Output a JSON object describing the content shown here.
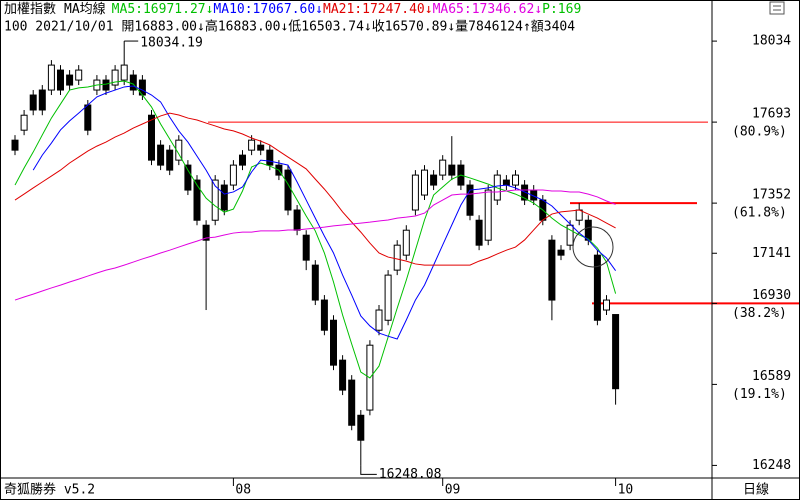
{
  "chart_data": {
    "type": "candlestick",
    "title": "加權指數",
    "subtitle": "MA均線",
    "info_line": "100 2021/10/01 開16883.00↓高16883.00↓低16503.74↓收16570.89↓量7846124↑額3404",
    "extra_label": {
      "text": "P:169",
      "color": "#00c000"
    },
    "footer_left": "奇狐勝券 v5.2",
    "footer_right": "日線",
    "max_label": "18034.19",
    "min_label": "16248.08",
    "ylim": [
      16195,
      18207
    ],
    "yticks": [
      18034,
      17693,
      17352,
      17141,
      16930,
      16589,
      16248
    ],
    "retracements": [
      {
        "value": 17693,
        "label": "(80.9%)"
      },
      {
        "value": 17352,
        "label": "(61.8%)"
      },
      {
        "value": 16930,
        "label": "(38.2%)"
      },
      {
        "value": 16589,
        "label": "(19.1%)"
      }
    ],
    "hlines": [
      17693,
      17352,
      16930
    ],
    "categories": [
      null,
      null,
      null,
      null,
      null,
      null,
      null,
      null,
      null,
      null,
      null,
      null,
      null,
      null,
      null,
      null,
      null,
      null,
      null,
      null,
      null,
      null,
      null,
      null,
      "08",
      null,
      null,
      null,
      null,
      null,
      null,
      null,
      null,
      null,
      null,
      null,
      null,
      null,
      null,
      null,
      null,
      null,
      null,
      null,
      null,
      null,
      null,
      "09",
      null,
      null,
      null,
      null,
      null,
      null,
      null,
      null,
      null,
      null,
      null,
      null,
      null,
      null,
      null,
      null,
      null,
      null,
      "10"
    ],
    "candles": [
      [
        17617,
        17638,
        17554,
        17575
      ],
      [
        17659,
        17744,
        17638,
        17722
      ],
      [
        17807,
        17828,
        17722,
        17744
      ],
      [
        17828,
        17849,
        17722,
        17744
      ],
      [
        17828,
        17954,
        17807,
        17933
      ],
      [
        17912,
        17933,
        17807,
        17828
      ],
      [
        17891,
        17912,
        17828,
        17849
      ],
      [
        17870,
        17933,
        17849,
        17912
      ],
      [
        17765,
        17786,
        17638,
        17659
      ],
      [
        17828,
        17891,
        17807,
        17870
      ],
      [
        17870,
        17891,
        17807,
        17828
      ],
      [
        17849,
        17933,
        17828,
        17912
      ],
      [
        17870,
        18034.19,
        17849,
        17933
      ],
      [
        17891,
        17912,
        17807,
        17828
      ],
      [
        17870,
        17891,
        17786,
        17807
      ],
      [
        17722,
        17744,
        17512,
        17533
      ],
      [
        17596,
        17617,
        17491,
        17512
      ],
      [
        17575,
        17596,
        17470,
        17491
      ],
      [
        17533,
        17638,
        17512,
        17617
      ],
      [
        17512,
        17533,
        17386,
        17407
      ],
      [
        17449,
        17470,
        17259,
        17280
      ],
      [
        17259,
        17280,
        16902,
        17196
      ],
      [
        17280,
        17470,
        17259,
        17449
      ],
      [
        17428,
        17449,
        17301,
        17323
      ],
      [
        17428,
        17533,
        17407,
        17512
      ],
      [
        17554,
        17575,
        17491,
        17512
      ],
      [
        17575,
        17638,
        17554,
        17617
      ],
      [
        17596,
        17617,
        17554,
        17575
      ],
      [
        17575,
        17596,
        17491,
        17512
      ],
      [
        17512,
        17533,
        17449,
        17470
      ],
      [
        17491,
        17512,
        17301,
        17323
      ],
      [
        17323,
        17344,
        17217,
        17238
      ],
      [
        17217,
        17238,
        17070,
        17112
      ],
      [
        17091,
        17112,
        16923,
        16944
      ],
      [
        16944,
        16965,
        16796,
        16817
      ],
      [
        16859,
        16880,
        16649,
        16670
      ],
      [
        16691,
        16712,
        16544,
        16565
      ],
      [
        16607,
        16628,
        16396,
        16417
      ],
      [
        16459,
        16481,
        16248.08,
        16354
      ],
      [
        16481,
        16775,
        16459,
        16754
      ],
      [
        16817,
        16923,
        16796,
        16902
      ],
      [
        16859,
        17070,
        16838,
        17049
      ],
      [
        17070,
        17196,
        17049,
        17175
      ],
      [
        17133,
        17259,
        17112,
        17238
      ],
      [
        17323,
        17491,
        17301,
        17470
      ],
      [
        17386,
        17512,
        17365,
        17491
      ],
      [
        17470,
        17491,
        17407,
        17428
      ],
      [
        17470,
        17554,
        17449,
        17533
      ],
      [
        17512,
        17634,
        17449,
        17470
      ],
      [
        17512,
        17533,
        17407,
        17428
      ],
      [
        17428,
        17449,
        17280,
        17301
      ],
      [
        17280,
        17301,
        17154,
        17175
      ],
      [
        17196,
        17428,
        17175,
        17407
      ],
      [
        17365,
        17491,
        17344,
        17470
      ],
      [
        17449,
        17470,
        17407,
        17428
      ],
      [
        17428,
        17491,
        17407,
        17470
      ],
      [
        17428,
        17449,
        17344,
        17365
      ],
      [
        17407,
        17428,
        17344,
        17365
      ],
      [
        17365,
        17386,
        17259,
        17280
      ],
      [
        17196,
        17217,
        16859,
        16944
      ],
      [
        17154,
        17175,
        17112,
        17133
      ],
      [
        17175,
        17280,
        17154,
        17259
      ],
      [
        17280,
        17352,
        17259,
        17323
      ],
      [
        17280,
        17301,
        17175,
        17196
      ],
      [
        17133,
        17154,
        16838,
        16859
      ],
      [
        16902,
        16965,
        16881,
        16944
      ],
      [
        16883.0,
        16883.0,
        16503.74,
        16570.89
      ]
    ],
    "series": [
      {
        "name": "MA5",
        "label": "MA5:16971.27↓",
        "color": "#00c000",
        "values": [
          17428,
          17500,
          17567,
          17639,
          17710,
          17769,
          17828,
          17837,
          17841,
          17849,
          17853,
          17862,
          17866,
          17853,
          17807,
          17757,
          17685,
          17622,
          17559,
          17491,
          17428,
          17373,
          17340,
          17314,
          17327,
          17403,
          17504,
          17521,
          17508,
          17491,
          17432,
          17365,
          17298,
          17235,
          17142,
          17020,
          16881,
          16759,
          16641,
          16616,
          16666,
          16788,
          16910,
          17028,
          17154,
          17281,
          17386,
          17420,
          17453,
          17470,
          17458,
          17445,
          17432,
          17416,
          17403,
          17390,
          17373,
          17352,
          17323,
          17289,
          17260,
          17239,
          17218,
          17201,
          17163,
          17104,
          16971.27
        ]
      },
      {
        "name": "MA10",
        "label": "MA10:17067.60↓",
        "color": "#0000ff",
        "values": [
          null,
          null,
          17491,
          17554,
          17605,
          17660,
          17698,
          17731,
          17765,
          17799,
          17815,
          17828,
          17841,
          17845,
          17828,
          17807,
          17778,
          17714,
          17656,
          17609,
          17550,
          17491,
          17424,
          17390,
          17399,
          17420,
          17483,
          17533,
          17529,
          17521,
          17512,
          17441,
          17365,
          17289,
          17213,
          17142,
          17049,
          16965,
          16877,
          16835,
          16805,
          16792,
          16780,
          16860,
          16944,
          17007,
          17091,
          17176,
          17260,
          17344,
          17407,
          17411,
          17416,
          17424,
          17428,
          17416,
          17399,
          17382,
          17365,
          17340,
          17302,
          17264,
          17226,
          17197,
          17154,
          17121,
          17067.6
        ]
      },
      {
        "name": "MA21",
        "label": "MA21:17247.40↓",
        "color": "#e00000",
        "values": [
          17365,
          17390,
          17416,
          17441,
          17466,
          17491,
          17521,
          17546,
          17571,
          17592,
          17609,
          17630,
          17647,
          17668,
          17685,
          17702,
          17719,
          17731,
          17723,
          17710,
          17702,
          17689,
          17677,
          17664,
          17656,
          17643,
          17626,
          17613,
          17597,
          17571,
          17546,
          17521,
          17496,
          17453,
          17411,
          17365,
          17315,
          17272,
          17230,
          17184,
          17142,
          17125,
          17117,
          17108,
          17096,
          17091,
          17091,
          17091,
          17091,
          17091,
          17091,
          17108,
          17121,
          17138,
          17154,
          17167,
          17197,
          17239,
          17281,
          17306,
          17315,
          17319,
          17323,
          17306,
          17289,
          17268,
          17247.4
        ]
      },
      {
        "name": "MA65",
        "label": "MA65:17346.62↓",
        "color": "#e000e0",
        "values": [
          16944,
          16957,
          16969,
          16982,
          16995,
          17007,
          17020,
          17032,
          17045,
          17058,
          17070,
          17079,
          17091,
          17104,
          17117,
          17129,
          17142,
          17154,
          17167,
          17180,
          17192,
          17205,
          17209,
          17218,
          17226,
          17230,
          17230,
          17235,
          17235,
          17235,
          17239,
          17239,
          17243,
          17247,
          17251,
          17256,
          17260,
          17264,
          17268,
          17272,
          17277,
          17281,
          17289,
          17293,
          17298,
          17310,
          17344,
          17365,
          17386,
          17390,
          17390,
          17394,
          17399,
          17399,
          17403,
          17407,
          17407,
          17407,
          17407,
          17403,
          17403,
          17399,
          17399,
          17390,
          17378,
          17361,
          17346.62
        ]
      }
    ]
  }
}
